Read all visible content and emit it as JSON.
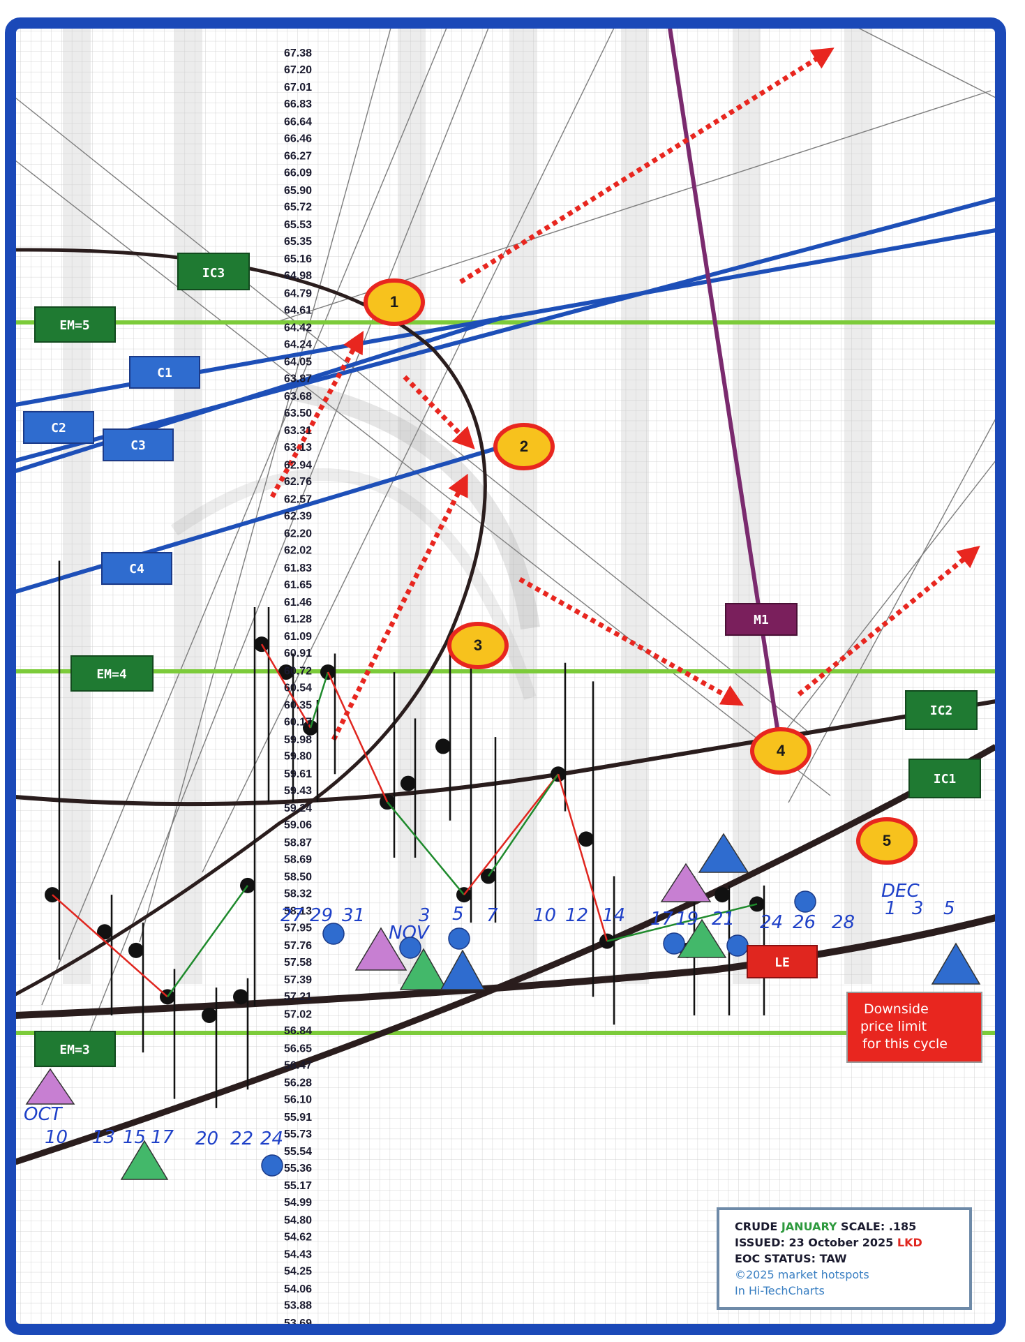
{
  "chart_data": {
    "type": "line",
    "price_axis": {
      "labels": [
        "67.38",
        "67.20",
        "67.01",
        "66.83",
        "66.64",
        "66.46",
        "66.27",
        "66.09",
        "65.90",
        "65.72",
        "65.53",
        "65.35",
        "65.16",
        "64.98",
        "64.79",
        "64.61",
        "64.42",
        "64.24",
        "64.05",
        "63.87",
        "63.68",
        "63.50",
        "63.31",
        "63.13",
        "62.94",
        "62.76",
        "62.57",
        "62.39",
        "62.20",
        "62.02",
        "61.83",
        "61.65",
        "61.46",
        "61.28",
        "61.09",
        "60.91",
        "60.72",
        "60.54",
        "60.35",
        "60.17",
        "59.98",
        "59.80",
        "59.61",
        "59.43",
        "59.24",
        "59.06",
        "58.87",
        "58.69",
        "58.50",
        "58.32",
        "58.13",
        "57.95",
        "57.76",
        "57.58",
        "57.39",
        "57.21",
        "57.02",
        "56.84",
        "56.65",
        "56.47",
        "56.28",
        "56.10",
        "55.91",
        "55.73",
        "55.54",
        "55.36",
        "55.17",
        "54.99",
        "54.80",
        "54.62",
        "54.43",
        "54.25",
        "54.06",
        "53.88",
        "53.69"
      ],
      "range": [
        53.69,
        67.38
      ]
    },
    "date_labels": {
      "oct": {
        "month": "OCT",
        "days": [
          "10",
          "13",
          "15",
          "17",
          "20",
          "22",
          "24",
          "27",
          "29",
          "31"
        ]
      },
      "nov": {
        "month": "NOV",
        "days": [
          "3",
          "5",
          "7",
          "10",
          "12",
          "14",
          "17",
          "19",
          "21",
          "24",
          "26",
          "28"
        ]
      },
      "dec": {
        "month": "DEC",
        "days": [
          "1",
          "3",
          "5"
        ]
      }
    },
    "daily_bars": [
      {
        "date": "Oct 10",
        "high": 61.9,
        "low": 57.6,
        "close": 58.3
      },
      {
        "date": "Oct 13",
        "high": 58.3,
        "low": 57.0,
        "close": 57.9
      },
      {
        "date": "Oct 15",
        "high": 58.0,
        "low": 56.6,
        "close": 57.7
      },
      {
        "date": "Oct 17",
        "high": 57.5,
        "low": 56.1,
        "close": 57.2
      },
      {
        "date": "Oct 20",
        "high": 57.3,
        "low": 56.0,
        "close": 57.0
      },
      {
        "date": "Oct 22",
        "high": 57.4,
        "low": 56.2,
        "close": 57.2
      },
      {
        "date": "Oct 24",
        "high": 61.4,
        "low": 57.1,
        "close": 58.4
      },
      {
        "date": "Oct 27",
        "high": 61.4,
        "low": 59.3,
        "close": 61.0
      },
      {
        "date": "Oct 29",
        "high": 60.9,
        "low": 59.3,
        "close": 60.7
      },
      {
        "date": "Oct 31",
        "high": 60.4,
        "low": 59.3,
        "close": 60.1
      },
      {
        "date": "Nov 3",
        "high": 60.9,
        "low": 59.6,
        "close": 60.7
      },
      {
        "date": "Nov 5",
        "high": 60.7,
        "low": 58.7,
        "close": 59.3
      },
      {
        "date": "Nov 7",
        "high": 60.2,
        "low": 58.7,
        "close": 59.5
      },
      {
        "date": "Nov 10",
        "high": 60.9,
        "low": 59.1,
        "close": 59.9
      },
      {
        "date": "Nov 12",
        "high": 60.9,
        "low": 58.0,
        "close": 58.3
      },
      {
        "date": "Nov 14",
        "high": 60.0,
        "low": 58.0,
        "close": 58.5
      },
      {
        "date": "Nov 17",
        "high": 60.8,
        "low": 59.2,
        "close": 59.6
      },
      {
        "date": "Nov 19",
        "high": 60.6,
        "low": 57.2,
        "close": 58.9
      },
      {
        "date": "Nov 21",
        "high": 58.5,
        "low": 56.9,
        "close": 57.8
      },
      {
        "date": "Nov 24",
        "high": 58.5,
        "low": 57.0,
        "close": 57.7
      },
      {
        "date": "Nov 26",
        "high": 58.4,
        "low": 57.0,
        "close": 58.3
      },
      {
        "date": "Nov 28",
        "high": 58.4,
        "low": 57.0,
        "close": 58.2
      }
    ],
    "annotations": {
      "lines": {
        "em5": "EM=5",
        "em4": "EM=4",
        "em3": "EM=3",
        "ic1": "IC1",
        "ic2": "IC2",
        "ic3": "IC3",
        "c1": "C1",
        "c2": "C2",
        "c3": "C3",
        "c4": "C4",
        "m1": "M1"
      },
      "points": [
        "1",
        "2",
        "3",
        "4",
        "5"
      ],
      "le_label": "LE",
      "limit_note": [
        "Downside",
        "price limit",
        "for this cycle"
      ]
    }
  },
  "info_box": {
    "line1_prefix": "CRUDE ",
    "line1_month": "JANUARY",
    "line1_suffix": " SCALE:  .185",
    "line2_prefix": "ISSUED:  23 October 2025 ",
    "line2_suffix": "LKD",
    "line3": "EOC STATUS: TAW",
    "line4": "©2025 market hotspots",
    "line5": "In Hi-TechCharts"
  },
  "colors": {
    "frame": "#1b49b8",
    "em_line": "#7ccb3a",
    "blue_line": "#1d4fb8",
    "label_green": "#1f7a32",
    "label_blue": "#2f6ccf",
    "label_m1": "#7a1f5c",
    "circle_fill": "#f7c21d",
    "circle_stroke": "#e8261f",
    "dotted_arrow": "#e8261f",
    "bar": "#111111",
    "up_line": "#1e8a2c",
    "down_line": "#e0261f",
    "m1_line": "#7a2a6e"
  }
}
